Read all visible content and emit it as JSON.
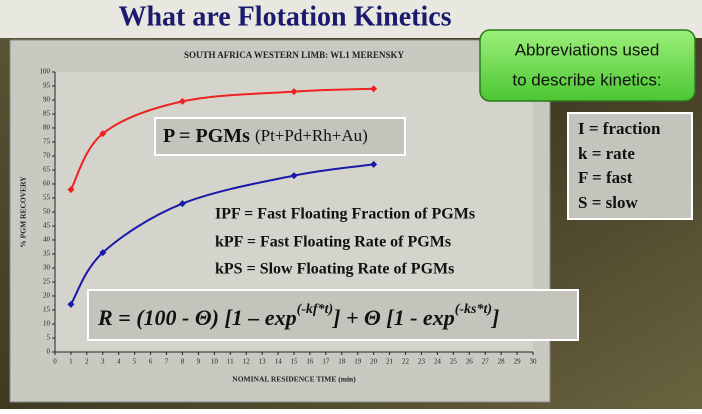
{
  "slide": {
    "title": "What are Flotation Kinetics",
    "pgm_label": "P = PGMs",
    "pgm_detail": "(Pt+Pd+Rh+Au)",
    "definitions": [
      "IPF = Fast Floating Fraction of PGMs",
      "kPF = Fast Floating Rate of PGMs",
      "kPS = Slow Floating Rate of PGMs"
    ],
    "formula": {
      "part1": "R = (100 - Θ) [1 – exp",
      "sup1": "(-kf*t)",
      "part2": "] + Θ [1 - exp",
      "sup2": "(-ks*t)",
      "part3": "]"
    },
    "abbreviations_title": [
      "Abbreviations used",
      "to describe kinetics:"
    ],
    "abbreviations": [
      "I = fraction",
      "k = rate",
      "F = fast",
      "S = slow"
    ]
  },
  "chart_data": {
    "type": "line",
    "title": "SOUTH AFRICA WESTERN LIMB: WL1 MERENSKY",
    "x_label": "NOMINAL RESIDENCE TIME (min)",
    "y_label": "% PGM RECOVERY",
    "x": [
      1,
      3,
      8,
      15,
      20
    ],
    "series": [
      {
        "color": "#ee2222",
        "values": [
          58,
          78,
          89.5,
          93,
          94
        ]
      },
      {
        "color": "#1a1aa8",
        "values": [
          17,
          35.5,
          53,
          63,
          67
        ]
      }
    ],
    "xlim": [
      0,
      30
    ],
    "xticks": [
      0,
      1,
      2,
      3,
      4,
      5,
      6,
      7,
      8,
      9,
      10,
      11,
      12,
      13,
      14,
      15,
      16,
      17,
      18,
      19,
      20,
      21,
      22,
      23,
      24,
      25,
      26,
      27,
      28,
      29,
      30
    ],
    "ylim": [
      0,
      100
    ],
    "yticks": [
      0,
      5,
      10,
      15,
      20,
      25,
      30,
      35,
      40,
      45,
      50,
      55,
      60,
      65,
      70,
      75,
      80,
      85,
      90,
      95,
      100
    ],
    "grid": false
  }
}
